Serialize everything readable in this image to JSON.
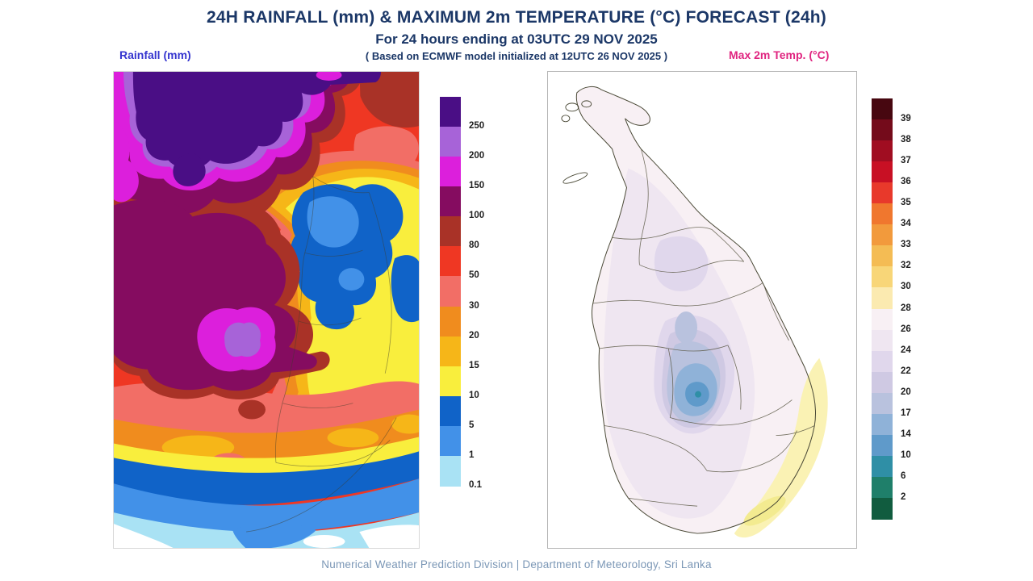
{
  "header": {
    "title": "24H RAINFALL (mm) & MAXIMUM 2m TEMPERATURE (°C) FORECAST (24h)",
    "subtitle": "For 24 hours ending at 03UTC 29 NOV 2025",
    "model_note": "( Based on ECMWF model initialized at 12UTC 26 NOV 2025 )",
    "title_color": "#1b3767"
  },
  "rainfall_panel": {
    "label": "Rainfall (mm)",
    "label_color": "#3535cf",
    "legend": {
      "ticks": [
        "250",
        "200",
        "150",
        "100",
        "80",
        "50",
        "30",
        "20",
        "15",
        "10",
        "5",
        "1",
        "0.1"
      ],
      "colors": [
        "#4a0e85",
        "#a763d8",
        "#dc1fdc",
        "#850c60",
        "#a93227",
        "#ef3723",
        "#f26e66",
        "#f08c1e",
        "#f6b618",
        "#f9ee3d",
        "#1063c8",
        "#4291e8",
        "#a9e2f4"
      ]
    }
  },
  "temperature_panel": {
    "label": "Max 2m Temp. (°C)",
    "label_color": "#e02580",
    "legend": {
      "ticks": [
        "39",
        "38",
        "37",
        "36",
        "35",
        "34",
        "33",
        "32",
        "30",
        "28",
        "26",
        "24",
        "22",
        "20",
        "17",
        "14",
        "10",
        "6",
        "2"
      ],
      "colors": [
        "#470710",
        "#740b1b",
        "#a00d21",
        "#c81024",
        "#e8392b",
        "#f0772e",
        "#f29a3c",
        "#f4bc54",
        "#f8d678",
        "#fbeab0",
        "#f8f0f4",
        "#efe6f1",
        "#e0d7ec",
        "#cfc9e3",
        "#b9c2de",
        "#8fb2d8",
        "#5f9aca",
        "#2f8fa6",
        "#1f7f6a",
        "#115c3f"
      ]
    },
    "map": {
      "warm_band": "#faf2b4",
      "warm_spot": "#f3eb90"
    }
  },
  "footer": {
    "credit": "Numerical Weather Prediction Division | Department of Meteorology, Sri Lanka"
  }
}
